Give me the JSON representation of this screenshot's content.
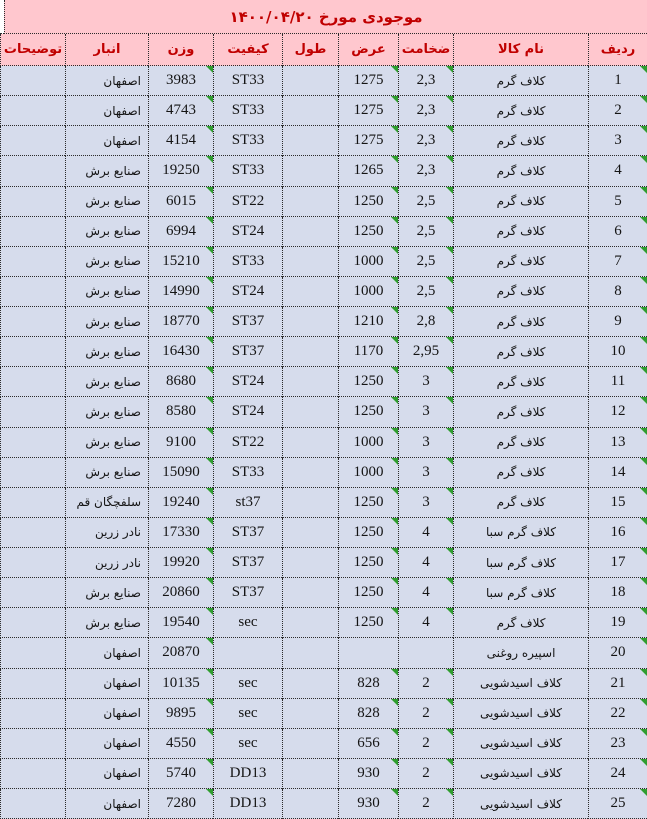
{
  "title": "موجودی مورخ ۱۴۰۰/۰۴/۲۰",
  "colors": {
    "band_fill": "#FFC7CE",
    "band_text": "#C00000",
    "cell_fill": "#D6DCEC",
    "gridline": "#2b2b2b",
    "error_flag_green": "#2f9d2f"
  },
  "table": {
    "columns": [
      {
        "key": "radif",
        "label": "ردیف"
      },
      {
        "key": "item",
        "label": "نام کالا"
      },
      {
        "key": "thickness",
        "label": "ضخامت"
      },
      {
        "key": "width",
        "label": "عرض"
      },
      {
        "key": "length",
        "label": "طول"
      },
      {
        "key": "quality",
        "label": "کیفیت"
      },
      {
        "key": "weight",
        "label": "وزن"
      },
      {
        "key": "warehouse",
        "label": "انبار"
      },
      {
        "key": "notes",
        "label": "توضیحات"
      }
    ],
    "triangle_columns": [
      "radif",
      "thickness",
      "width",
      "weight"
    ],
    "rows": [
      {
        "radif": "1",
        "item": "کلاف گرم",
        "thickness": "2,3",
        "width": "1275",
        "length": "",
        "quality": "ST33",
        "weight": "3983",
        "warehouse": "اصفهان",
        "notes": ""
      },
      {
        "radif": "2",
        "item": "کلاف گرم",
        "thickness": "2,3",
        "width": "1275",
        "length": "",
        "quality": "ST33",
        "weight": "4743",
        "warehouse": "اصفهان",
        "notes": ""
      },
      {
        "radif": "3",
        "item": "کلاف گرم",
        "thickness": "2,3",
        "width": "1275",
        "length": "",
        "quality": "ST33",
        "weight": "4154",
        "warehouse": "اصفهان",
        "notes": ""
      },
      {
        "radif": "4",
        "item": "کلاف گرم",
        "thickness": "2,3",
        "width": "1265",
        "length": "",
        "quality": "ST33",
        "weight": "19250",
        "warehouse": "صنایع برش",
        "notes": ""
      },
      {
        "radif": "5",
        "item": "کلاف گرم",
        "thickness": "2,5",
        "width": "1250",
        "length": "",
        "quality": "ST22",
        "weight": "6015",
        "warehouse": "صنایع برش",
        "notes": ""
      },
      {
        "radif": "6",
        "item": "کلاف گرم",
        "thickness": "2,5",
        "width": "1250",
        "length": "",
        "quality": "ST24",
        "weight": "6994",
        "warehouse": "صنایع برش",
        "notes": ""
      },
      {
        "radif": "7",
        "item": "کلاف گرم",
        "thickness": "2,5",
        "width": "1000",
        "length": "",
        "quality": "ST33",
        "weight": "15210",
        "warehouse": "صنایع برش",
        "notes": ""
      },
      {
        "radif": "8",
        "item": "کلاف گرم",
        "thickness": "2,5",
        "width": "1000",
        "length": "",
        "quality": "ST24",
        "weight": "14990",
        "warehouse": "صنایع برش",
        "notes": ""
      },
      {
        "radif": "9",
        "item": "کلاف گرم",
        "thickness": "2,8",
        "width": "1210",
        "length": "",
        "quality": "ST37",
        "weight": "18770",
        "warehouse": "صنایع برش",
        "notes": ""
      },
      {
        "radif": "10",
        "item": "کلاف گرم",
        "thickness": "2,95",
        "width": "1170",
        "length": "",
        "quality": "ST37",
        "weight": "16430",
        "warehouse": "صنایع برش",
        "notes": ""
      },
      {
        "radif": "11",
        "item": "کلاف گرم",
        "thickness": "3",
        "width": "1250",
        "length": "",
        "quality": "ST24",
        "weight": "8680",
        "warehouse": "صنایع برش",
        "notes": ""
      },
      {
        "radif": "12",
        "item": "کلاف گرم",
        "thickness": "3",
        "width": "1250",
        "length": "",
        "quality": "ST24",
        "weight": "8580",
        "warehouse": "صنایع برش",
        "notes": ""
      },
      {
        "radif": "13",
        "item": "کلاف گرم",
        "thickness": "3",
        "width": "1000",
        "length": "",
        "quality": "ST22",
        "weight": "9100",
        "warehouse": "صنایع برش",
        "notes": ""
      },
      {
        "radif": "14",
        "item": "کلاف گرم",
        "thickness": "3",
        "width": "1000",
        "length": "",
        "quality": "ST33",
        "weight": "15090",
        "warehouse": "صنایع برش",
        "notes": ""
      },
      {
        "radif": "15",
        "item": "کلاف گرم",
        "thickness": "3",
        "width": "1250",
        "length": "",
        "quality": "st37",
        "weight": "19240",
        "warehouse": "سلفچگان قم",
        "notes": ""
      },
      {
        "radif": "16",
        "item": "کلاف گرم سبا",
        "thickness": "4",
        "width": "1250",
        "length": "",
        "quality": "ST37",
        "weight": "17330",
        "warehouse": "نادر زرین",
        "notes": ""
      },
      {
        "radif": "17",
        "item": "کلاف گرم سبا",
        "thickness": "4",
        "width": "1250",
        "length": "",
        "quality": "ST37",
        "weight": "19920",
        "warehouse": "نادر زرین",
        "notes": ""
      },
      {
        "radif": "18",
        "item": "کلاف گرم سبا",
        "thickness": "4",
        "width": "1250",
        "length": "",
        "quality": "ST37",
        "weight": "20860",
        "warehouse": "صنایع برش",
        "notes": ""
      },
      {
        "radif": "19",
        "item": "کلاف گرم",
        "thickness": "4",
        "width": "1250",
        "length": "",
        "quality": "sec",
        "weight": "19540",
        "warehouse": "صنایع برش",
        "notes": ""
      },
      {
        "radif": "20",
        "item": "اسپیره روغنی",
        "thickness": "",
        "width": "",
        "length": "",
        "quality": "",
        "weight": "20870",
        "warehouse": "اصفهان",
        "notes": ""
      },
      {
        "radif": "21",
        "item": "کلاف اسیدشویی",
        "thickness": "2",
        "width": "828",
        "length": "",
        "quality": "sec",
        "weight": "10135",
        "warehouse": "اصفهان",
        "notes": ""
      },
      {
        "radif": "22",
        "item": "کلاف اسیدشویی",
        "thickness": "2",
        "width": "828",
        "length": "",
        "quality": "sec",
        "weight": "9895",
        "warehouse": "اصفهان",
        "notes": ""
      },
      {
        "radif": "23",
        "item": "کلاف اسیدشویی",
        "thickness": "2",
        "width": "656",
        "length": "",
        "quality": "sec",
        "weight": "4550",
        "warehouse": "اصفهان",
        "notes": ""
      },
      {
        "radif": "24",
        "item": "کلاف اسیدشویی",
        "thickness": "2",
        "width": "930",
        "length": "",
        "quality": "DD13",
        "weight": "5740",
        "warehouse": "اصفهان",
        "notes": ""
      },
      {
        "radif": "25",
        "item": "کلاف اسیدشویی",
        "thickness": "2",
        "width": "930",
        "length": "",
        "quality": "DD13",
        "weight": "7280",
        "warehouse": "اصفهان",
        "notes": ""
      }
    ]
  }
}
